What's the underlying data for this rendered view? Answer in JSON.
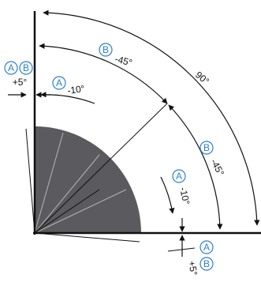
{
  "colors": {
    "line": "#111111",
    "sector_fill": "#5b5b5f",
    "badge": "#2b7fd1",
    "background": "#ffffff"
  },
  "badges": {
    "a": "A",
    "b": "B"
  },
  "labels": {
    "right_angle": "90°",
    "b_upper": "-45°",
    "a_upper": "-10°",
    "ab_upper": "+5°",
    "b_lower": "-45°",
    "a_lower": "-10°",
    "ab_lower": "+5°"
  }
}
